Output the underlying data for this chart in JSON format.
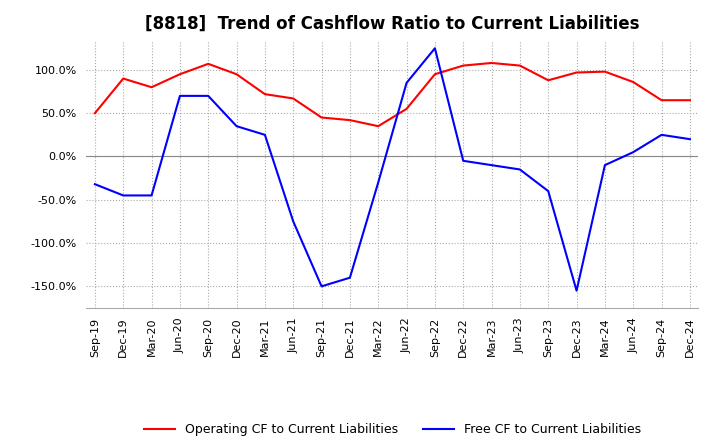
{
  "title": "[8818]  Trend of Cashflow Ratio to Current Liabilities",
  "x_labels": [
    "Sep-19",
    "Dec-19",
    "Mar-20",
    "Jun-20",
    "Sep-20",
    "Dec-20",
    "Mar-21",
    "Jun-21",
    "Sep-21",
    "Dec-21",
    "Mar-22",
    "Jun-22",
    "Sep-22",
    "Dec-22",
    "Mar-23",
    "Jun-23",
    "Sep-23",
    "Dec-23",
    "Mar-24",
    "Jun-24",
    "Sep-24",
    "Dec-24"
  ],
  "operating_cf": [
    50,
    90,
    80,
    95,
    107,
    95,
    72,
    67,
    45,
    42,
    35,
    55,
    95,
    105,
    108,
    105,
    88,
    97,
    98,
    86,
    65,
    65
  ],
  "free_cf": [
    -32,
    -45,
    -45,
    70,
    70,
    35,
    25,
    -75,
    -150,
    -140,
    -30,
    85,
    125,
    -5,
    -10,
    -15,
    -40,
    -155,
    -10,
    5,
    25,
    20
  ],
  "ylim": [
    -175,
    135
  ],
  "yticks": [
    -150,
    -100,
    -50,
    0,
    50,
    100
  ],
  "operating_color": "#ff0000",
  "free_color": "#0000ff",
  "grid_color": "#aaaaaa",
  "zero_line_color": "#888888",
  "background_color": "#ffffff",
  "title_fontsize": 12,
  "tick_fontsize": 8,
  "legend_labels": [
    "Operating CF to Current Liabilities",
    "Free CF to Current Liabilities"
  ]
}
